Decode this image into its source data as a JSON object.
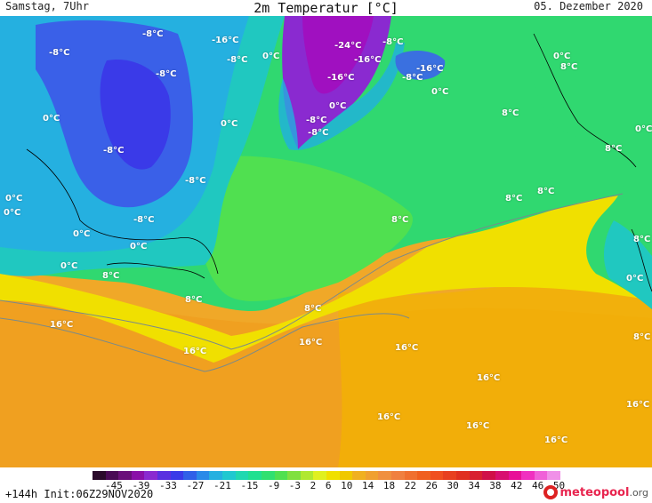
{
  "header": {
    "left": "Samstag, 7Uhr",
    "title": "2m Temperatur [°C]",
    "right": "05. Dezember 2020"
  },
  "colorbar": {
    "labels": "-45 -39 -33 -27 -21 -15 -9 -3 2 6 10 14 18 22 26 30 34 38 42 46 50",
    "colors": [
      "#2a0a2a",
      "#4a0a55",
      "#6a107a",
      "#8a10a8",
      "#8a2ad0",
      "#5a30e0",
      "#3a3ae8",
      "#3060e8",
      "#2a8ae8",
      "#25b0e0",
      "#20c8d0",
      "#20d8b0",
      "#20e090",
      "#30e070",
      "#50e050",
      "#80e040",
      "#b0e830",
      "#e0f020",
      "#f0e000",
      "#f0c800",
      "#f0b020",
      "#f0a030",
      "#f09040",
      "#f08040",
      "#f07030",
      "#f06020",
      "#f05020",
      "#e84020",
      "#e03020",
      "#d82030",
      "#d01048",
      "#d81070",
      "#e81098",
      "#f030c0",
      "#f060d8",
      "#f090e8"
    ]
  },
  "footer": {
    "init": "+144h Init:06Z29NOV2020",
    "logo_main": "meteopool",
    "logo_tld": ".org"
  },
  "temp_labels": [
    "-8°C",
    "-8°C",
    "-16°C",
    "-8°C",
    "-8°C",
    "0°C",
    "-24°C",
    "-8°C",
    "-16°C",
    "-16°C",
    "-8°C",
    "-16°C",
    "0°C",
    "0°C",
    "8°C",
    "0°C",
    "0°C",
    "-8°C",
    "-8°C",
    "0°C",
    "-8°C",
    "8°C",
    "0°C",
    "8°C",
    "-8°C",
    "0°C",
    "0°C",
    "0°C",
    "8°C",
    "8°C",
    "8°C",
    "0°C",
    "-8°C",
    "0°C",
    "8°C",
    "8°C",
    "0°C",
    "8°C",
    "8°C",
    "8°C",
    "16°C",
    "16°C",
    "16°C",
    "16°C",
    "16°C",
    "16°C",
    "16°C",
    "16°C",
    "16°C"
  ]
}
